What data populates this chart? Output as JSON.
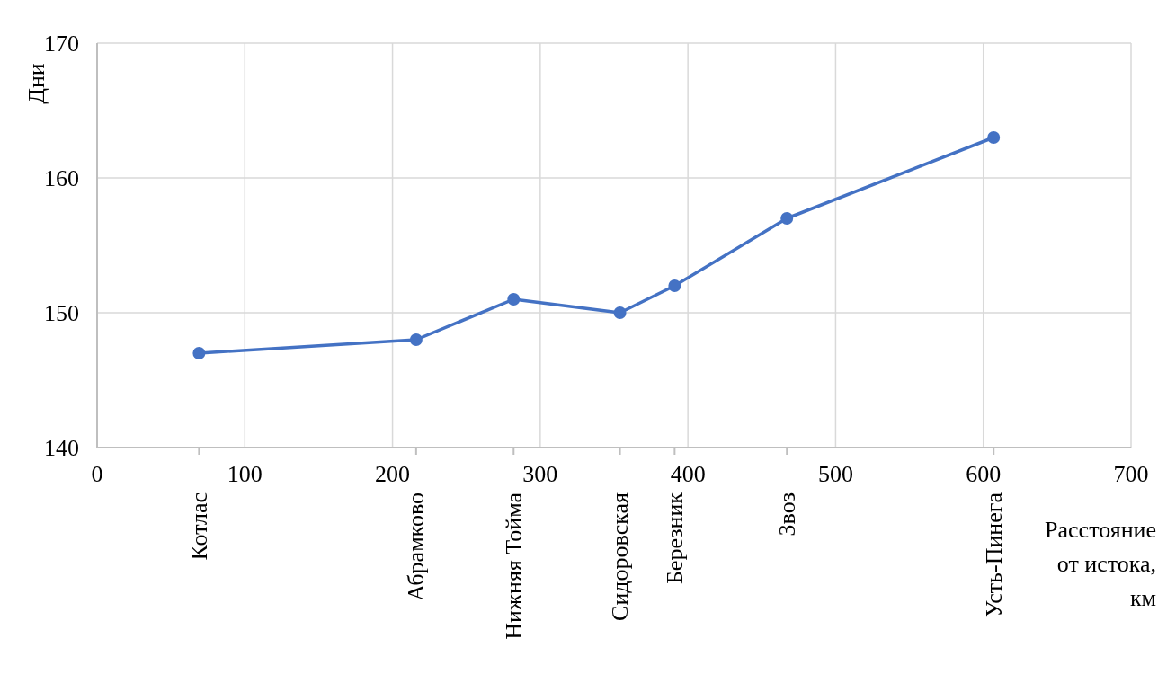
{
  "chart_data": {
    "type": "line",
    "xlabel": "Расстояние от истока, км",
    "ylabel": "Дни",
    "x": [
      69,
      216,
      282,
      354,
      391,
      467,
      607
    ],
    "series": [
      {
        "color": "#4472c4",
        "values": [
          147,
          148,
          151,
          150,
          152,
          157,
          163
        ]
      }
    ],
    "xlim": [
      0,
      700
    ],
    "xticks": [
      0,
      100,
      200,
      300,
      400,
      500,
      600,
      700
    ],
    "ylim": [
      140,
      170
    ],
    "yticks": [
      140,
      150,
      160,
      170
    ],
    "grid": true,
    "marker": "circle",
    "line_style": "solid",
    "legend": false,
    "annotations": [
      "Котлас",
      "Абрамково",
      "Нижняя Тойма",
      "Сидоровская",
      "Березник",
      "Звоз",
      "Усть-Пинега"
    ]
  }
}
